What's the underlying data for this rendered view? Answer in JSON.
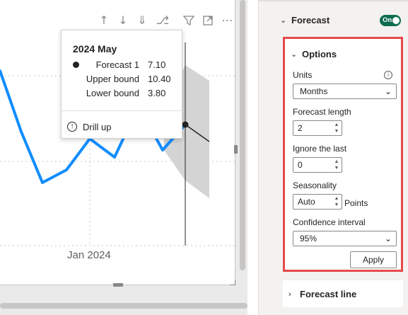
{
  "visual_header": {
    "icons": [
      "arrow-up-icon",
      "arrow-down-icon",
      "double-arrow-down-icon",
      "expand-hierarchy-icon",
      "filter-icon",
      "focus-mode-icon",
      "more-options-icon"
    ]
  },
  "chart_data": {
    "type": "line",
    "x_tick_labels": [
      "Jan 2024"
    ],
    "series": [
      {
        "name": "Forecast 1",
        "values": [
          7.1
        ]
      }
    ]
  },
  "tooltip": {
    "title": "2024 May",
    "rows": [
      {
        "label": "Forecast 1",
        "value": "7.10"
      },
      {
        "label": "Upper bound",
        "value": "10.40"
      },
      {
        "label": "Lower bound",
        "value": "3.80"
      }
    ],
    "drill_up": "Drill up"
  },
  "pane": {
    "forecast": {
      "title": "Forecast",
      "toggle_label": "On"
    },
    "options": {
      "title": "Options",
      "units_label": "Units",
      "units_value": "Months",
      "forecast_length_label": "Forecast length",
      "forecast_length_value": "2",
      "ignore_last_label": "Ignore the last",
      "ignore_last_value": "0",
      "seasonality_label": "Seasonality",
      "seasonality_value": "Auto",
      "seasonality_unit": "Points",
      "confidence_label": "Confidence interval",
      "confidence_value": "95%",
      "apply_label": "Apply"
    },
    "forecast_line": {
      "title": "Forecast line"
    }
  },
  "colors": {
    "series_line": "#118dff",
    "forecast_band": "#d4d4d4",
    "toggle_on": "#0f6c4f",
    "highlight_border": "#e64a4a"
  }
}
